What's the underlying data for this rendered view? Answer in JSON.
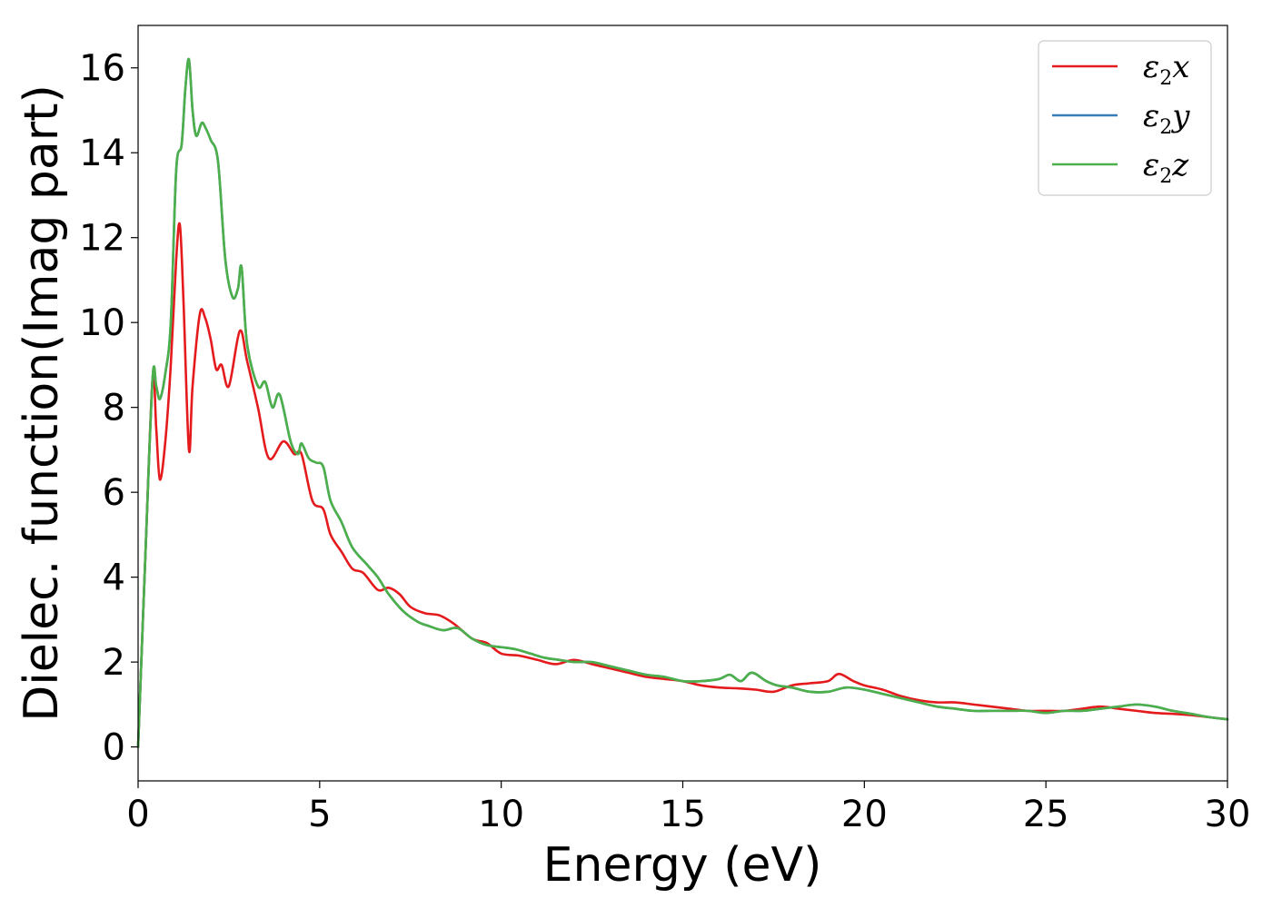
{
  "chart_data": {
    "type": "line",
    "title": "",
    "xlabel": "Energy (eV)",
    "ylabel": "Dielec. function(Imag part)",
    "xlim": [
      0,
      30
    ],
    "ylim": [
      -0.8,
      17
    ],
    "x_ticks": [
      0,
      5,
      10,
      15,
      20,
      25,
      30
    ],
    "y_ticks": [
      0,
      2,
      4,
      6,
      8,
      10,
      12,
      14,
      16
    ],
    "grid": false,
    "legend_position": "top-right",
    "series": [
      {
        "name": "ε2x",
        "legend_base": "ε",
        "legend_sub": "2",
        "legend_tail": "x",
        "color": "#e41a1c",
        "points": [
          [
            0,
            0
          ],
          [
            0.2,
            4.5
          ],
          [
            0.4,
            8.7
          ],
          [
            0.5,
            7.5
          ],
          [
            0.6,
            6.3
          ],
          [
            0.75,
            7.2
          ],
          [
            0.9,
            9.0
          ],
          [
            1.05,
            11.5
          ],
          [
            1.15,
            12.3
          ],
          [
            1.25,
            10.5
          ],
          [
            1.4,
            7.0
          ],
          [
            1.5,
            8.5
          ],
          [
            1.7,
            10.2
          ],
          [
            1.85,
            10.1
          ],
          [
            2.0,
            9.6
          ],
          [
            2.15,
            8.9
          ],
          [
            2.3,
            9.0
          ],
          [
            2.5,
            8.5
          ],
          [
            2.8,
            9.8
          ],
          [
            3.0,
            9.1
          ],
          [
            3.3,
            8.0
          ],
          [
            3.6,
            6.8
          ],
          [
            4.0,
            7.2
          ],
          [
            4.3,
            6.9
          ],
          [
            4.5,
            6.9
          ],
          [
            4.8,
            5.8
          ],
          [
            5.1,
            5.6
          ],
          [
            5.3,
            5.0
          ],
          [
            5.6,
            4.6
          ],
          [
            5.9,
            4.2
          ],
          [
            6.2,
            4.1
          ],
          [
            6.6,
            3.7
          ],
          [
            6.9,
            3.75
          ],
          [
            7.2,
            3.6
          ],
          [
            7.5,
            3.3
          ],
          [
            7.9,
            3.15
          ],
          [
            8.3,
            3.1
          ],
          [
            8.7,
            2.9
          ],
          [
            9.2,
            2.55
          ],
          [
            9.6,
            2.45
          ],
          [
            10.0,
            2.2
          ],
          [
            10.5,
            2.15
          ],
          [
            11.0,
            2.05
          ],
          [
            11.5,
            1.95
          ],
          [
            12.0,
            2.05
          ],
          [
            12.5,
            1.95
          ],
          [
            13.0,
            1.85
          ],
          [
            13.5,
            1.75
          ],
          [
            14.0,
            1.65
          ],
          [
            14.5,
            1.6
          ],
          [
            15.0,
            1.55
          ],
          [
            15.5,
            1.45
          ],
          [
            16.0,
            1.4
          ],
          [
            16.5,
            1.38
          ],
          [
            17.0,
            1.35
          ],
          [
            17.5,
            1.3
          ],
          [
            18.0,
            1.45
          ],
          [
            18.5,
            1.5
          ],
          [
            19.0,
            1.55
          ],
          [
            19.3,
            1.72
          ],
          [
            19.7,
            1.55
          ],
          [
            20.0,
            1.45
          ],
          [
            20.5,
            1.35
          ],
          [
            21.0,
            1.2
          ],
          [
            21.5,
            1.1
          ],
          [
            22.0,
            1.05
          ],
          [
            22.5,
            1.05
          ],
          [
            23.0,
            1.0
          ],
          [
            23.5,
            0.95
          ],
          [
            24.0,
            0.9
          ],
          [
            24.5,
            0.85
          ],
          [
            25.0,
            0.85
          ],
          [
            25.5,
            0.85
          ],
          [
            26.0,
            0.9
          ],
          [
            26.5,
            0.95
          ],
          [
            27.0,
            0.9
          ],
          [
            27.5,
            0.85
          ],
          [
            28.0,
            0.8
          ],
          [
            28.5,
            0.78
          ],
          [
            29.0,
            0.75
          ],
          [
            29.5,
            0.7
          ],
          [
            30.0,
            0.65
          ]
        ]
      },
      {
        "name": "ε2y",
        "legend_base": "ε",
        "legend_sub": "2",
        "legend_tail": "y",
        "color": "#377eb8",
        "points": [
          [
            0,
            0
          ],
          [
            0.2,
            4.5
          ],
          [
            0.4,
            8.7
          ],
          [
            0.5,
            8.5
          ],
          [
            0.6,
            8.2
          ],
          [
            0.75,
            8.8
          ],
          [
            0.9,
            10.0
          ],
          [
            1.05,
            13.6
          ],
          [
            1.2,
            14.2
          ],
          [
            1.3,
            15.5
          ],
          [
            1.4,
            16.2
          ],
          [
            1.5,
            15.0
          ],
          [
            1.6,
            14.4
          ],
          [
            1.75,
            14.7
          ],
          [
            1.85,
            14.6
          ],
          [
            2.0,
            14.3
          ],
          [
            2.2,
            13.8
          ],
          [
            2.4,
            11.5
          ],
          [
            2.6,
            10.6
          ],
          [
            2.75,
            10.8
          ],
          [
            2.85,
            11.3
          ],
          [
            3.0,
            9.5
          ],
          [
            3.3,
            8.5
          ],
          [
            3.5,
            8.6
          ],
          [
            3.7,
            8.0
          ],
          [
            3.9,
            8.3
          ],
          [
            4.2,
            7.2
          ],
          [
            4.4,
            6.9
          ],
          [
            4.5,
            7.15
          ],
          [
            4.7,
            6.8
          ],
          [
            4.9,
            6.7
          ],
          [
            5.1,
            6.6
          ],
          [
            5.3,
            5.8
          ],
          [
            5.6,
            5.3
          ],
          [
            5.9,
            4.7
          ],
          [
            6.3,
            4.3
          ],
          [
            6.6,
            4.0
          ],
          [
            6.9,
            3.6
          ],
          [
            7.3,
            3.2
          ],
          [
            7.7,
            2.95
          ],
          [
            8.0,
            2.85
          ],
          [
            8.4,
            2.75
          ],
          [
            8.8,
            2.8
          ],
          [
            9.2,
            2.55
          ],
          [
            9.6,
            2.4
          ],
          [
            10.0,
            2.35
          ],
          [
            10.4,
            2.3
          ],
          [
            10.8,
            2.2
          ],
          [
            11.2,
            2.1
          ],
          [
            11.6,
            2.05
          ],
          [
            12.0,
            2.0
          ],
          [
            12.5,
            2.0
          ],
          [
            13.0,
            1.9
          ],
          [
            13.5,
            1.8
          ],
          [
            14.0,
            1.7
          ],
          [
            14.5,
            1.65
          ],
          [
            15.0,
            1.55
          ],
          [
            15.5,
            1.55
          ],
          [
            16.0,
            1.6
          ],
          [
            16.3,
            1.7
          ],
          [
            16.6,
            1.55
          ],
          [
            16.9,
            1.75
          ],
          [
            17.3,
            1.55
          ],
          [
            17.6,
            1.45
          ],
          [
            18.0,
            1.4
          ],
          [
            18.5,
            1.3
          ],
          [
            19.0,
            1.3
          ],
          [
            19.5,
            1.4
          ],
          [
            20.0,
            1.35
          ],
          [
            20.5,
            1.25
          ],
          [
            21.0,
            1.15
          ],
          [
            21.5,
            1.05
          ],
          [
            22.0,
            0.95
          ],
          [
            22.5,
            0.9
          ],
          [
            23.0,
            0.85
          ],
          [
            23.5,
            0.85
          ],
          [
            24.0,
            0.85
          ],
          [
            24.5,
            0.85
          ],
          [
            25.0,
            0.8
          ],
          [
            25.5,
            0.85
          ],
          [
            26.0,
            0.85
          ],
          [
            26.5,
            0.9
          ],
          [
            27.0,
            0.95
          ],
          [
            27.5,
            1.0
          ],
          [
            28.0,
            0.95
          ],
          [
            28.5,
            0.85
          ],
          [
            29.0,
            0.78
          ],
          [
            29.5,
            0.7
          ],
          [
            30.0,
            0.65
          ]
        ]
      },
      {
        "name": "ε2z",
        "legend_base": "ε",
        "legend_sub": "2",
        "legend_tail": "z",
        "color": "#4daf4a",
        "points": [
          [
            0,
            0
          ],
          [
            0.2,
            4.5
          ],
          [
            0.4,
            8.7
          ],
          [
            0.5,
            8.5
          ],
          [
            0.6,
            8.2
          ],
          [
            0.75,
            8.8
          ],
          [
            0.9,
            10.0
          ],
          [
            1.05,
            13.6
          ],
          [
            1.2,
            14.2
          ],
          [
            1.3,
            15.5
          ],
          [
            1.4,
            16.2
          ],
          [
            1.5,
            15.0
          ],
          [
            1.6,
            14.4
          ],
          [
            1.75,
            14.7
          ],
          [
            1.85,
            14.6
          ],
          [
            2.0,
            14.3
          ],
          [
            2.2,
            13.8
          ],
          [
            2.4,
            11.5
          ],
          [
            2.6,
            10.6
          ],
          [
            2.75,
            10.8
          ],
          [
            2.85,
            11.3
          ],
          [
            3.0,
            9.5
          ],
          [
            3.3,
            8.5
          ],
          [
            3.5,
            8.6
          ],
          [
            3.7,
            8.0
          ],
          [
            3.9,
            8.3
          ],
          [
            4.2,
            7.2
          ],
          [
            4.4,
            6.9
          ],
          [
            4.5,
            7.15
          ],
          [
            4.7,
            6.8
          ],
          [
            4.9,
            6.7
          ],
          [
            5.1,
            6.6
          ],
          [
            5.3,
            5.8
          ],
          [
            5.6,
            5.3
          ],
          [
            5.9,
            4.7
          ],
          [
            6.3,
            4.3
          ],
          [
            6.6,
            4.0
          ],
          [
            6.9,
            3.6
          ],
          [
            7.3,
            3.2
          ],
          [
            7.7,
            2.95
          ],
          [
            8.0,
            2.85
          ],
          [
            8.4,
            2.75
          ],
          [
            8.8,
            2.8
          ],
          [
            9.2,
            2.55
          ],
          [
            9.6,
            2.4
          ],
          [
            10.0,
            2.35
          ],
          [
            10.4,
            2.3
          ],
          [
            10.8,
            2.2
          ],
          [
            11.2,
            2.1
          ],
          [
            11.6,
            2.05
          ],
          [
            12.0,
            2.0
          ],
          [
            12.5,
            2.0
          ],
          [
            13.0,
            1.9
          ],
          [
            13.5,
            1.8
          ],
          [
            14.0,
            1.7
          ],
          [
            14.5,
            1.65
          ],
          [
            15.0,
            1.55
          ],
          [
            15.5,
            1.55
          ],
          [
            16.0,
            1.6
          ],
          [
            16.3,
            1.7
          ],
          [
            16.6,
            1.55
          ],
          [
            16.9,
            1.75
          ],
          [
            17.3,
            1.55
          ],
          [
            17.6,
            1.45
          ],
          [
            18.0,
            1.4
          ],
          [
            18.5,
            1.3
          ],
          [
            19.0,
            1.3
          ],
          [
            19.5,
            1.4
          ],
          [
            20.0,
            1.35
          ],
          [
            20.5,
            1.25
          ],
          [
            21.0,
            1.15
          ],
          [
            21.5,
            1.05
          ],
          [
            22.0,
            0.95
          ],
          [
            22.5,
            0.9
          ],
          [
            23.0,
            0.85
          ],
          [
            23.5,
            0.85
          ],
          [
            24.0,
            0.85
          ],
          [
            24.5,
            0.85
          ],
          [
            25.0,
            0.8
          ],
          [
            25.5,
            0.85
          ],
          [
            26.0,
            0.85
          ],
          [
            26.5,
            0.9
          ],
          [
            27.0,
            0.95
          ],
          [
            27.5,
            1.0
          ],
          [
            28.0,
            0.95
          ],
          [
            28.5,
            0.85
          ],
          [
            29.0,
            0.78
          ],
          [
            29.5,
            0.7
          ],
          [
            30.0,
            0.65
          ]
        ]
      }
    ]
  }
}
